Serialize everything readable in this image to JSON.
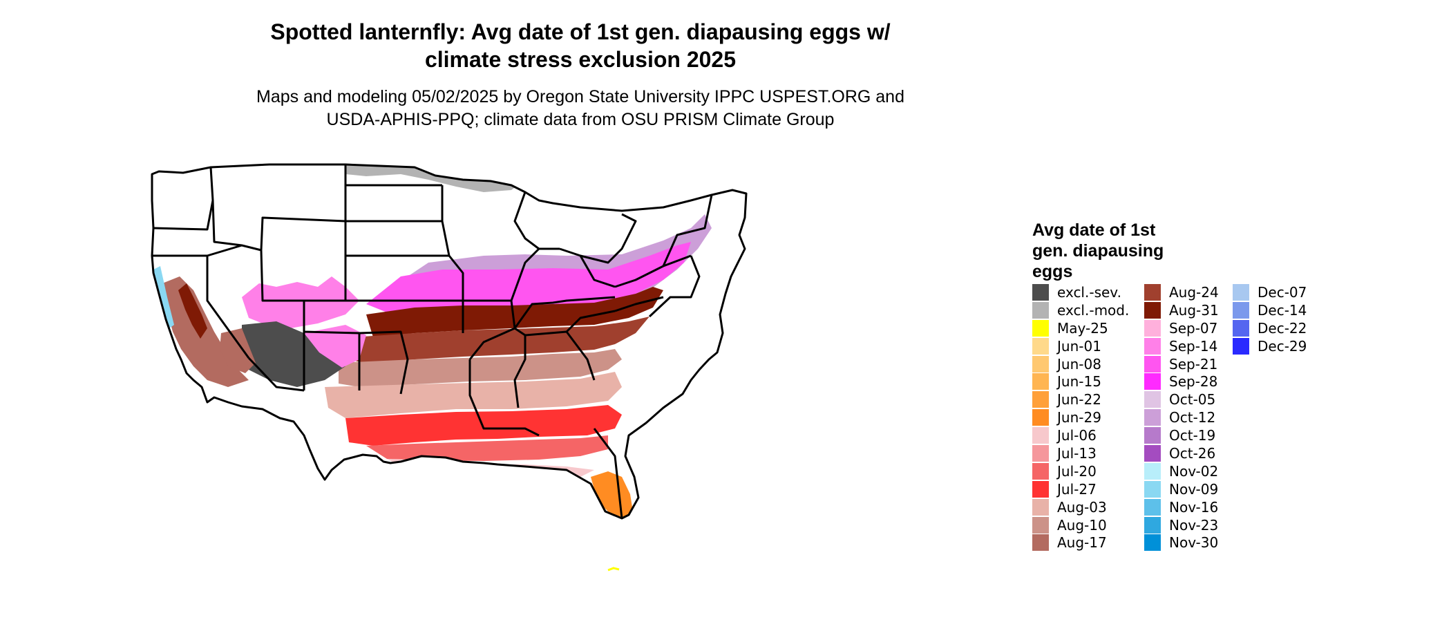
{
  "title_line1": "Spotted lanternfly: Avg date of 1st gen. diapausing eggs w/",
  "title_line2": "climate stress exclusion 2025",
  "subtitle_line1": "Maps and modeling 05/02/2025 by Oregon State University IPPC USPEST.ORG and",
  "subtitle_line2": "USDA-APHIS-PPQ; climate data from OSU PRISM Climate Group",
  "legend": {
    "title_line1": "Avg date of 1st",
    "title_line2": "gen. diapausing",
    "title_line3": "eggs",
    "col1": [
      {
        "label": "excl.-sev.",
        "color": "#4d4d4d"
      },
      {
        "label": "excl.-mod.",
        "color": "#b3b3b3"
      },
      {
        "label": "May-25",
        "color": "#ffff00"
      },
      {
        "label": "Jun-01",
        "color": "#ffd98a"
      },
      {
        "label": "Jun-08",
        "color": "#ffc870"
      },
      {
        "label": "Jun-15",
        "color": "#ffb552"
      },
      {
        "label": "Jun-22",
        "color": "#ffa03a"
      },
      {
        "label": "Jun-29",
        "color": "#ff8c22"
      },
      {
        "label": "Jul-06",
        "color": "#f7c8cc"
      },
      {
        "label": "Jul-13",
        "color": "#f5979c"
      },
      {
        "label": "Jul-20",
        "color": "#f56566"
      },
      {
        "label": "Jul-27",
        "color": "#ff3333"
      },
      {
        "label": "Aug-03",
        "color": "#e8b2a8"
      },
      {
        "label": "Aug-10",
        "color": "#cc9288"
      },
      {
        "label": "Aug-17",
        "color": "#b36b60"
      }
    ],
    "col2": [
      {
        "label": "Aug-24",
        "color": "#a0402e"
      },
      {
        "label": "Aug-31",
        "color": "#7f1a05"
      },
      {
        "label": "Sep-07",
        "color": "#ffb0dc"
      },
      {
        "label": "Sep-14",
        "color": "#ff80e8"
      },
      {
        "label": "Sep-21",
        "color": "#ff55f0"
      },
      {
        "label": "Sep-28",
        "color": "#ff2aff"
      },
      {
        "label": "Oct-05",
        "color": "#e0c4e4"
      },
      {
        "label": "Oct-12",
        "color": "#cc9fd8"
      },
      {
        "label": "Oct-19",
        "color": "#b67acb"
      },
      {
        "label": "Oct-26",
        "color": "#a44cc0"
      },
      {
        "label": "Nov-02",
        "color": "#b8eefa"
      },
      {
        "label": "Nov-09",
        "color": "#8ad8f2"
      },
      {
        "label": "Nov-16",
        "color": "#5dc0ea"
      },
      {
        "label": "Nov-23",
        "color": "#2fa8e0"
      },
      {
        "label": "Nov-30",
        "color": "#0090d8"
      }
    ],
    "col3": [
      {
        "label": "Dec-07",
        "color": "#a8c8f0"
      },
      {
        "label": "Dec-14",
        "color": "#7b99ec"
      },
      {
        "label": "Dec-22",
        "color": "#5566f0"
      },
      {
        "label": "Dec-29",
        "color": "#2a2aff"
      }
    ]
  }
}
